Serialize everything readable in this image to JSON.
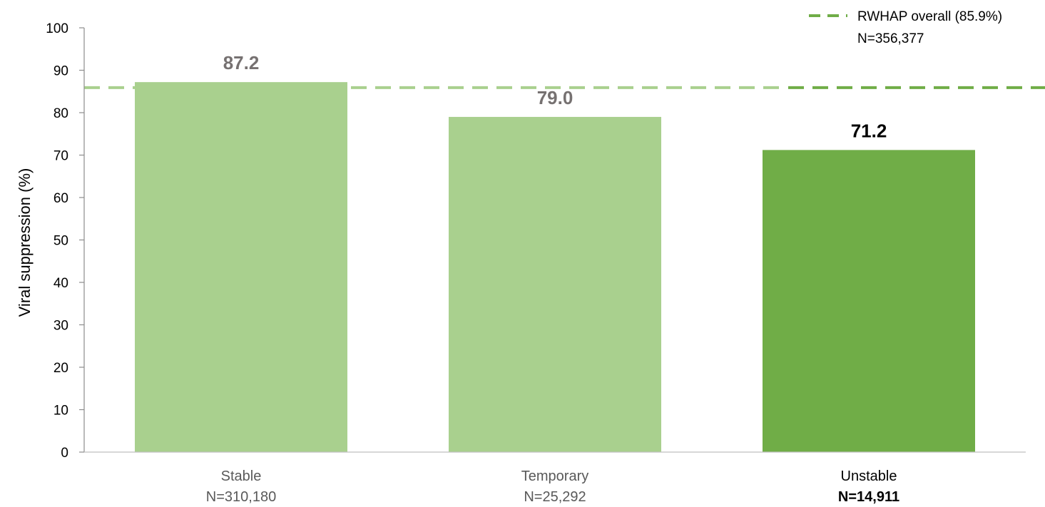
{
  "chart_data": {
    "type": "bar",
    "title": "",
    "xlabel": "",
    "ylabel": "Viral suppression  (%)",
    "ylim": [
      0,
      100
    ],
    "yticks": [
      0,
      10,
      20,
      30,
      40,
      50,
      60,
      70,
      80,
      90,
      100
    ],
    "grid": false,
    "categories": [
      {
        "name": "Stable",
        "n": "N=310,180",
        "value": 87.2,
        "value_label": "87.2",
        "color": "#a9d08e",
        "label_color": "#767171",
        "emphasis": false
      },
      {
        "name": "Temporary",
        "n": "N=25,292",
        "value": 79.0,
        "value_label": "79.0",
        "color": "#a9d08e",
        "label_color": "#767171",
        "emphasis": false
      },
      {
        "name": "Unstable",
        "n": "N=14,911",
        "value": 71.2,
        "value_label": "71.2",
        "color": "#70ad47",
        "label_color": "#000000",
        "emphasis": true
      }
    ],
    "reference_line": {
      "value": 85.9,
      "label": "RWHAP overall (85.9%)",
      "n": "N=356,377",
      "color_light": "#a9d08e",
      "color_dark": "#70ad47",
      "style": "dashed"
    },
    "legend_position": "top-right"
  }
}
